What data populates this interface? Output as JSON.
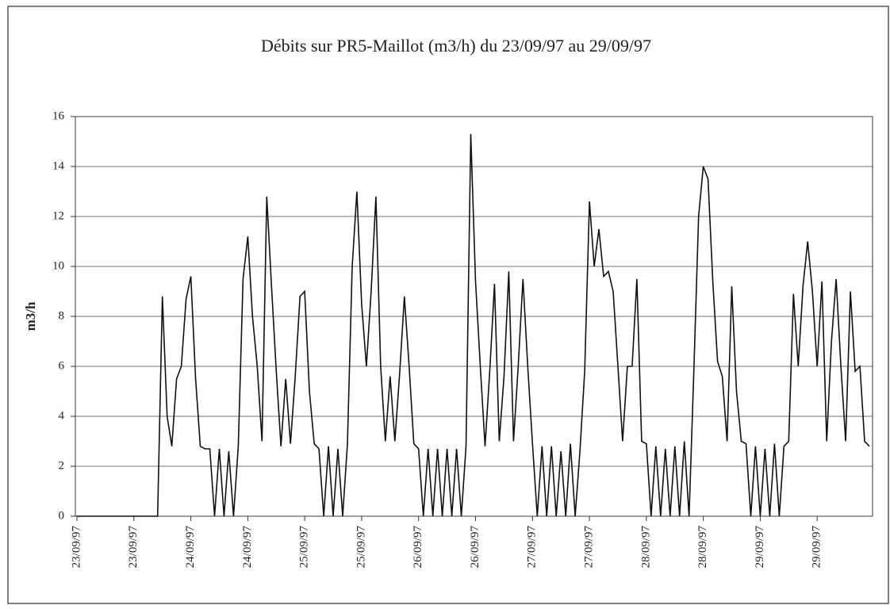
{
  "chart_data": {
    "type": "line",
    "title": "Débits sur  PR5-Maillot (m3/h)  du 23/09/97 au 29/09/97",
    "y_label": "m3/h",
    "categories": [
      "23/09/97",
      null,
      null,
      null,
      null,
      null,
      null,
      null,
      null,
      null,
      null,
      null,
      "23/09/97",
      null,
      null,
      null,
      null,
      null,
      null,
      null,
      null,
      null,
      null,
      null,
      "24/09/97",
      null,
      null,
      null,
      null,
      null,
      null,
      null,
      null,
      null,
      null,
      null,
      "24/09/97",
      null,
      null,
      null,
      null,
      null,
      null,
      null,
      null,
      null,
      null,
      null,
      "25/09/97",
      null,
      null,
      null,
      null,
      null,
      null,
      null,
      null,
      null,
      null,
      null,
      "25/09/97",
      null,
      null,
      null,
      null,
      null,
      null,
      null,
      null,
      null,
      null,
      null,
      "26/09/97",
      null,
      null,
      null,
      null,
      null,
      null,
      null,
      null,
      null,
      null,
      null,
      "26/09/97",
      null,
      null,
      null,
      null,
      null,
      null,
      null,
      null,
      null,
      null,
      null,
      "27/09/97",
      null,
      null,
      null,
      null,
      null,
      null,
      null,
      null,
      null,
      null,
      null,
      "27/09/97",
      null,
      null,
      null,
      null,
      null,
      null,
      null,
      null,
      null,
      null,
      null,
      "28/09/97",
      null,
      null,
      null,
      null,
      null,
      null,
      null,
      null,
      null,
      null,
      null,
      "28/09/97",
      null,
      null,
      null,
      null,
      null,
      null,
      null,
      null,
      null,
      null,
      null,
      "29/09/97",
      null,
      null,
      null,
      null,
      null,
      null,
      null,
      null,
      null,
      null,
      null,
      "29/09/97",
      null,
      null,
      null,
      null,
      null,
      null,
      null,
      null,
      null,
      null,
      null
    ],
    "series": [
      {
        "name": "m3/h",
        "color": "#111111",
        "values": [
          0,
          0,
          0,
          0,
          0,
          0,
          0,
          0,
          0,
          0,
          0,
          0,
          0,
          0,
          0,
          0,
          0,
          0,
          8.8,
          4,
          2.8,
          5.5,
          6,
          8.7,
          9.6,
          5.5,
          2.8,
          2.7,
          2.7,
          0,
          2.7,
          0,
          2.6,
          0,
          2.8,
          9.5,
          11.2,
          8,
          6,
          3,
          12.8,
          9.2,
          5.8,
          2.8,
          5.5,
          2.9,
          5.6,
          8.8,
          9,
          5,
          2.9,
          2.7,
          0,
          2.8,
          0,
          2.7,
          0,
          2.9,
          10,
          13,
          8.5,
          6,
          9,
          12.8,
          6,
          3,
          5.6,
          3,
          5.7,
          8.8,
          6,
          2.9,
          2.7,
          0,
          2.7,
          0,
          2.7,
          0,
          2.7,
          0,
          2.7,
          0,
          2.8,
          15.3,
          9.4,
          6,
          2.8,
          5.8,
          9.3,
          3,
          5.6,
          9.8,
          3,
          6,
          9.5,
          6,
          2.9,
          0,
          2.8,
          0,
          2.8,
          0,
          2.6,
          0,
          2.9,
          0,
          2.6,
          5.8,
          12.6,
          10,
          11.5,
          9.6,
          9.8,
          9,
          6,
          3,
          6,
          6,
          9.5,
          3,
          2.9,
          0,
          2.8,
          0,
          2.7,
          0,
          2.8,
          0,
          3,
          0,
          5.8,
          12,
          14,
          13.5,
          9.4,
          6.2,
          5.6,
          3,
          9.2,
          5,
          3,
          2.9,
          0,
          2.8,
          0,
          2.7,
          0,
          2.9,
          0,
          2.8,
          3,
          8.9,
          6,
          9.2,
          11,
          9,
          6,
          9.4,
          3,
          7,
          9.5,
          6,
          3,
          9,
          5.8,
          6,
          3,
          2.8
        ]
      }
    ],
    "ylim": [
      0,
      16
    ],
    "yticks": [
      0,
      2,
      4,
      6,
      8,
      10,
      12,
      14,
      16
    ],
    "grid": true
  }
}
